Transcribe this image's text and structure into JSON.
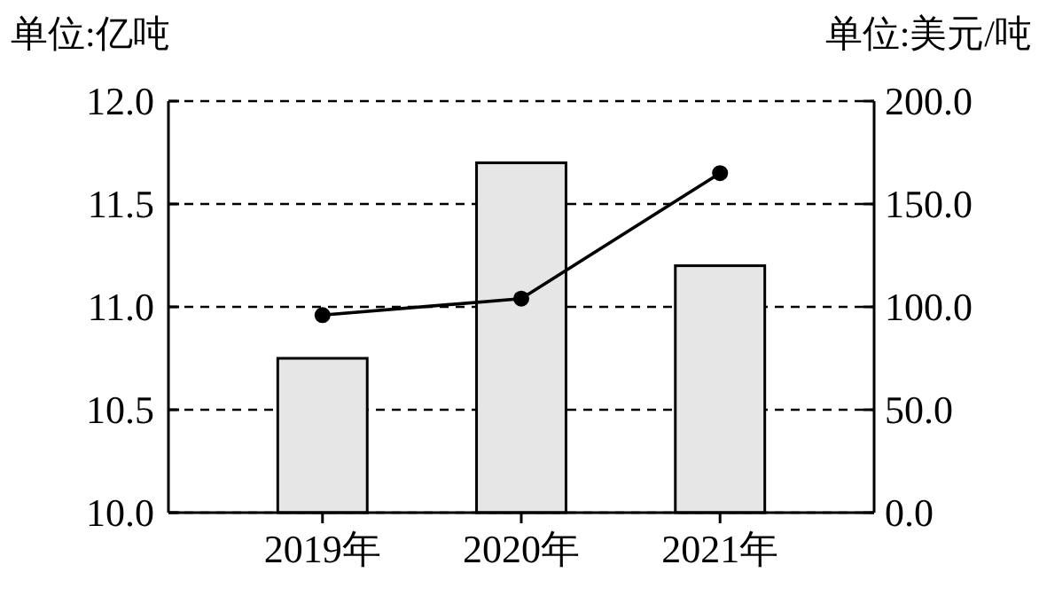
{
  "chart_data": {
    "type": "bar",
    "ylabel": "单位:亿吨",
    "y2label": "单位:美元/吨",
    "categories": [
      "2019年",
      "2020年",
      "2021年"
    ],
    "series": [
      {
        "color": "#e6e6e6",
        "values": [
          10.75,
          11.7,
          11.2
        ]
      },
      {
        "type": "line",
        "axis": "y2",
        "color": "#000000",
        "marker": "circle",
        "values": [
          96,
          104,
          165
        ]
      }
    ],
    "ylim": [
      10.0,
      12.0
    ],
    "yticks": [
      {
        "value": 10.0,
        "label": "10.0"
      },
      {
        "value": 10.5,
        "label": "10.5"
      },
      {
        "value": 11.0,
        "label": "11.0"
      },
      {
        "value": 11.5,
        "label": "11.5"
      },
      {
        "value": 12.0,
        "label": "12.0"
      }
    ],
    "y2lim": [
      0,
      200
    ],
    "y2ticks": [
      {
        "value": 0,
        "label": "0.0"
      },
      {
        "value": 50,
        "label": "50.0"
      },
      {
        "value": 100,
        "label": "100.0"
      },
      {
        "value": 150,
        "label": "150.0"
      },
      {
        "value": 200,
        "label": "200.0"
      }
    ],
    "grid": "y"
  }
}
